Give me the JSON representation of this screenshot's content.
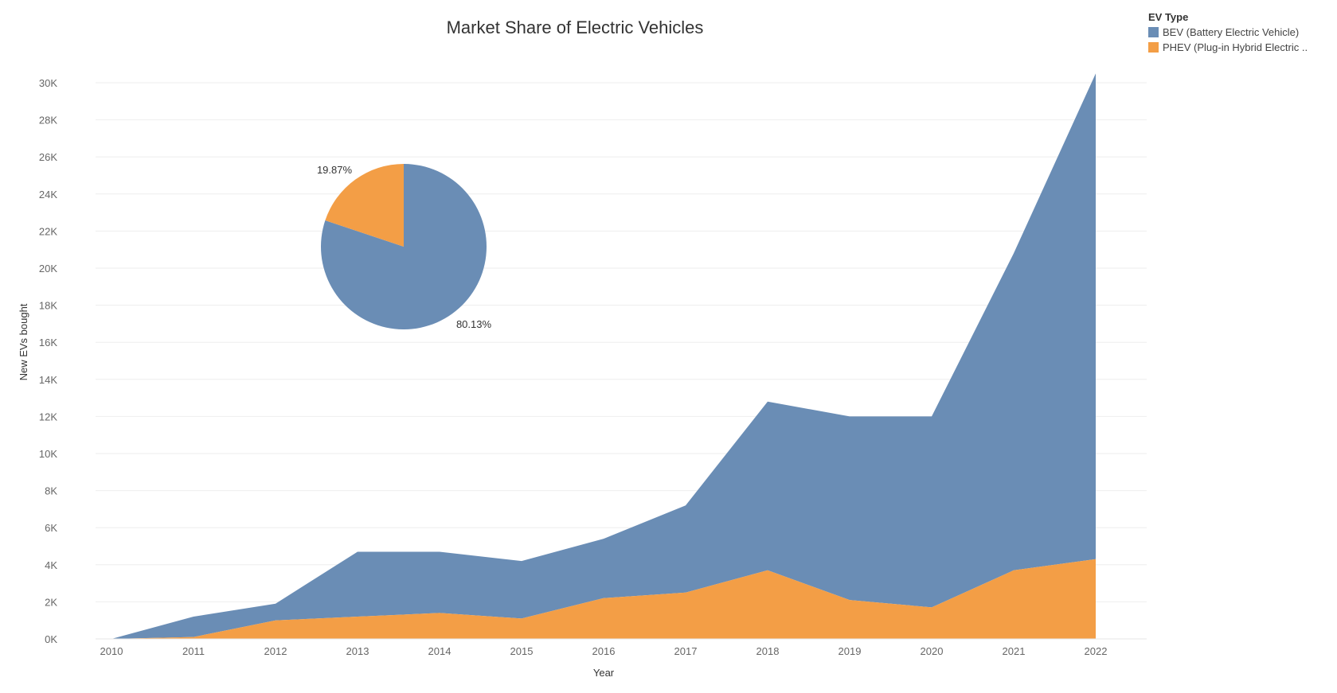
{
  "chart_data": [
    {
      "type": "area",
      "stacked": true,
      "title": "Market Share of Electric Vehicles",
      "xlabel": "Year",
      "ylabel": "New EVs bought",
      "x": [
        "2010",
        "2011",
        "2012",
        "2013",
        "2014",
        "2015",
        "2016",
        "2017",
        "2018",
        "2019",
        "2020",
        "2021",
        "2022"
      ],
      "ylim": [
        0,
        30000
      ],
      "y_ticks": [
        "0K",
        "2K",
        "4K",
        "6K",
        "8K",
        "10K",
        "12K",
        "14K",
        "16K",
        "18K",
        "20K",
        "22K",
        "24K",
        "26K",
        "28K",
        "30K"
      ],
      "grid": true,
      "legend_position": "top-right",
      "legend_title": "EV Type",
      "series": [
        {
          "name": "BEV (Battery Electric Vehicle)",
          "color": "#6a8db5",
          "values": [
            0,
            1100,
            900,
            3500,
            3300,
            3100,
            3200,
            4700,
            9100,
            9900,
            10300,
            17100,
            26200
          ]
        },
        {
          "name": "PHEV (Plug-in Hybrid Electric ..",
          "color": "#f39e46",
          "values": [
            0,
            100,
            1000,
            1200,
            1400,
            1100,
            2200,
            2500,
            3700,
            2100,
            1700,
            3700,
            4300
          ]
        }
      ]
    },
    {
      "type": "pie",
      "slices": [
        {
          "name": "BEV (Battery Electric Vehicle)",
          "value": 80.13,
          "label": "80.13%",
          "color": "#6a8db5"
        },
        {
          "name": "PHEV (Plug-in Hybrid Electric ..",
          "value": 19.87,
          "label": "19.87%",
          "color": "#f39e46"
        }
      ]
    }
  ]
}
